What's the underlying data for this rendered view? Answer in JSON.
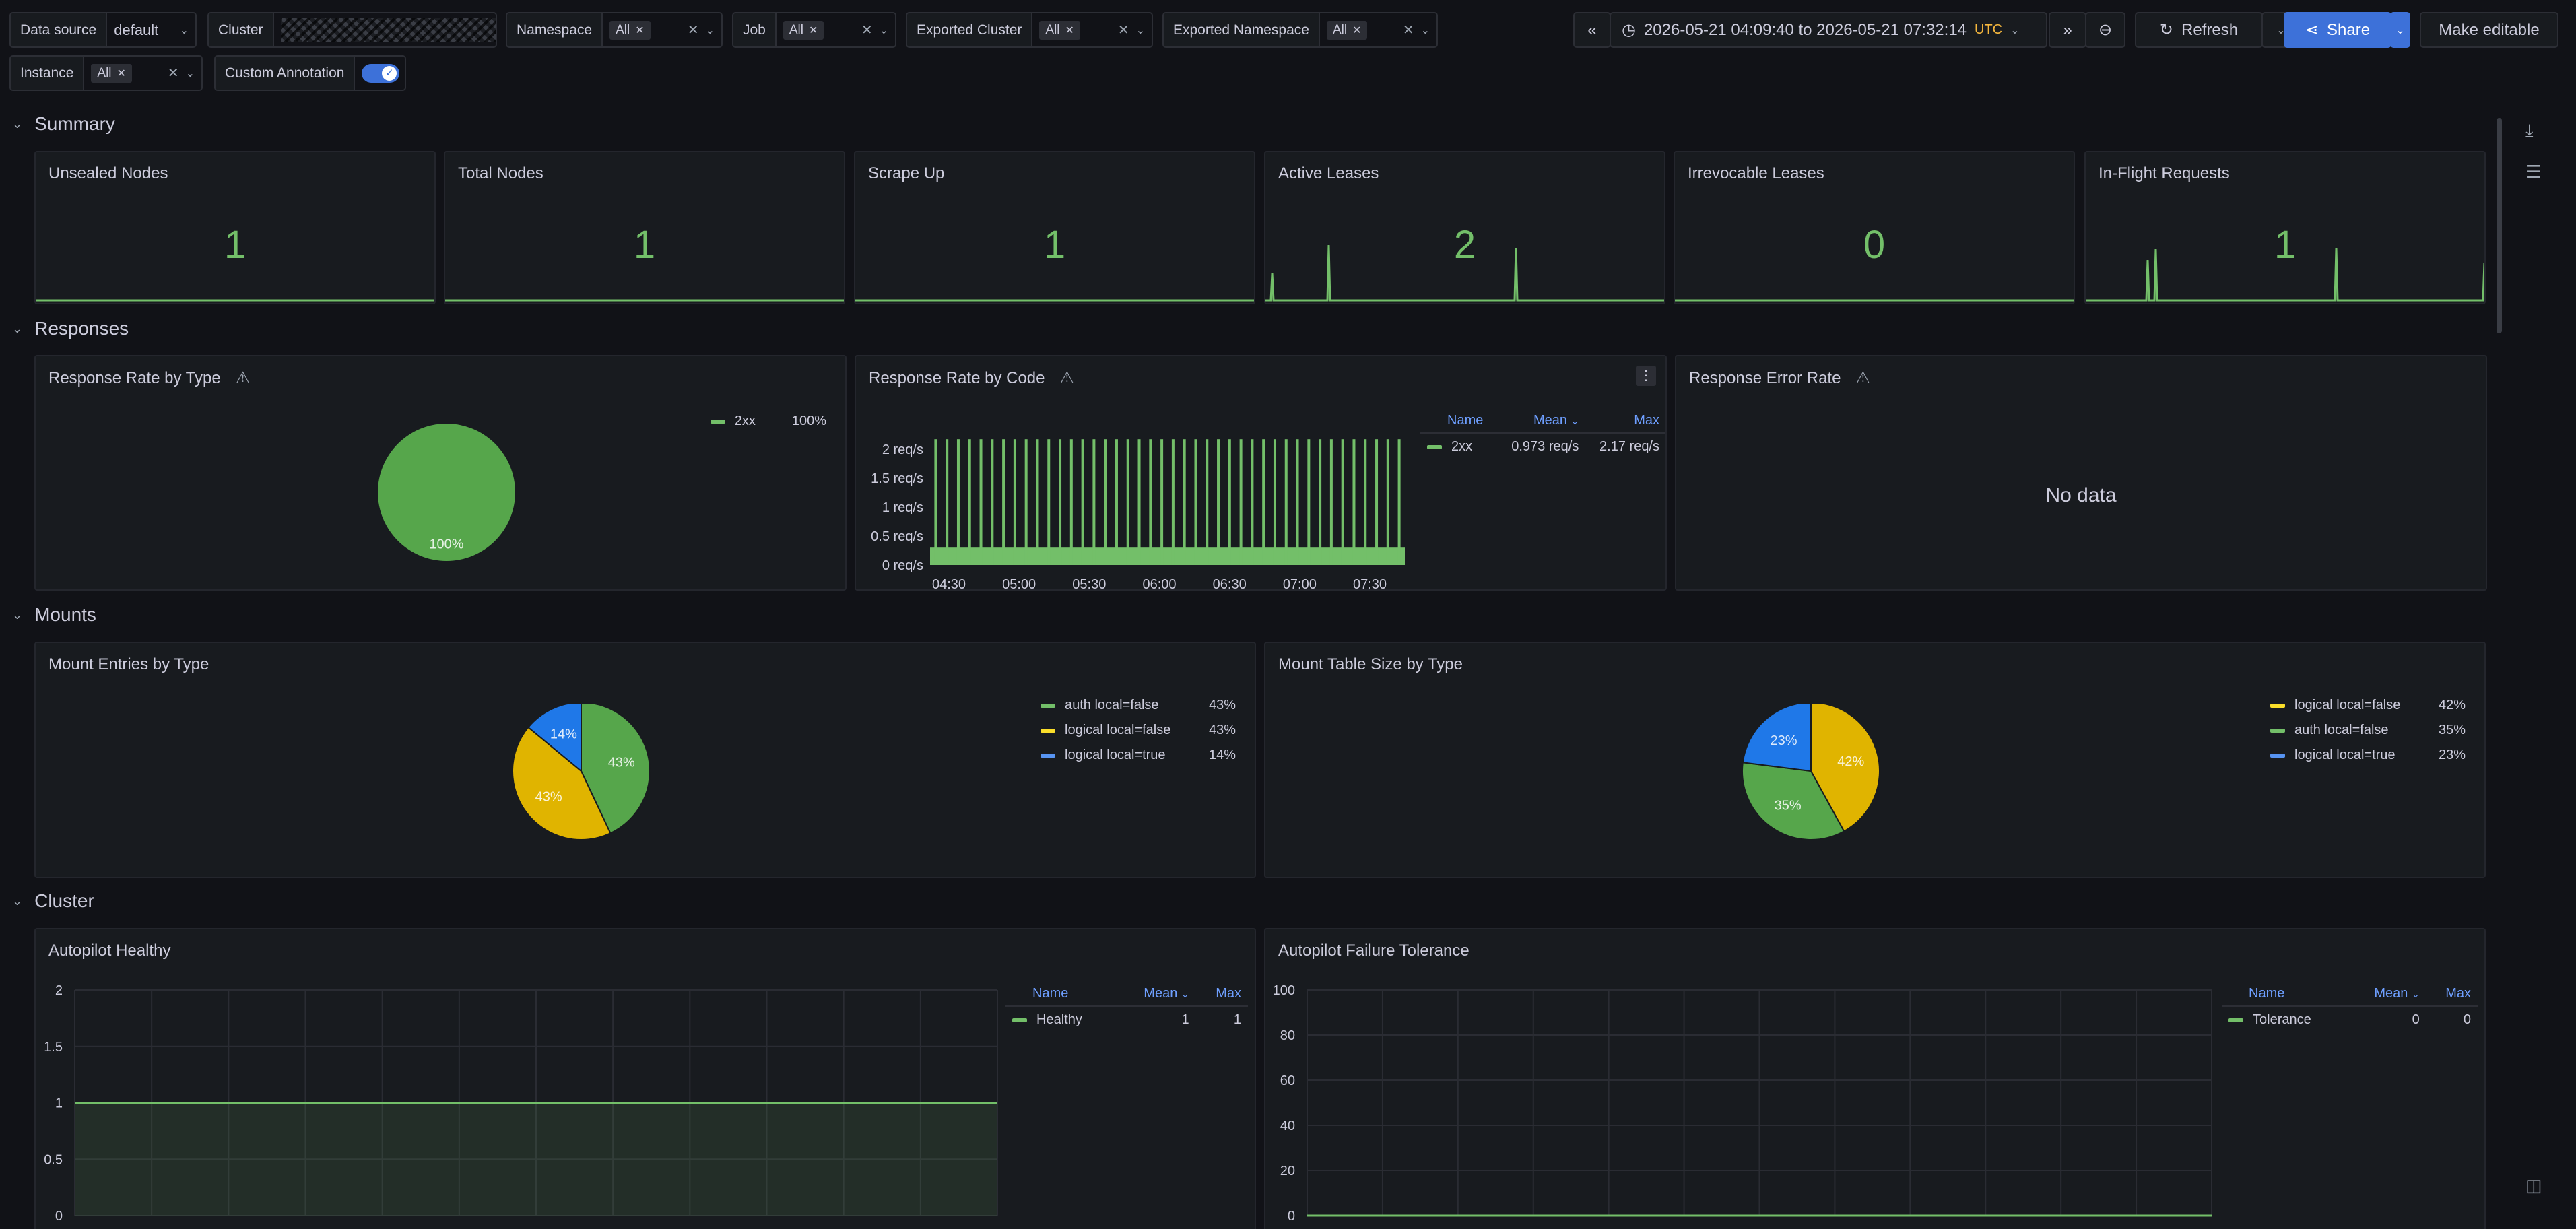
{
  "variables": {
    "datasource": {
      "label": "Data source",
      "value": "default"
    },
    "cluster": {
      "label": "Cluster"
    },
    "namespace": {
      "label": "Namespace",
      "value": "All"
    },
    "job": {
      "label": "Job",
      "value": "All"
    },
    "exported_cluster": {
      "label": "Exported Cluster",
      "value": "All"
    },
    "exported_namespace": {
      "label": "Exported Namespace",
      "value": "All"
    },
    "instance": {
      "label": "Instance",
      "value": "All"
    },
    "custom_annotation": {
      "label": "Custom Annotation",
      "enabled": true
    }
  },
  "toolbar": {
    "time_range": "2026-05-21 04:09:40 to 2026-05-21 07:32:14",
    "timezone": "UTC",
    "refresh_label": "Refresh",
    "share_label": "Share",
    "edit_label": "Make editable"
  },
  "rows": {
    "summary": "Summary",
    "responses": "Responses",
    "mounts": "Mounts",
    "cluster": "Cluster"
  },
  "stats": [
    {
      "title": "Unsealed Nodes",
      "value": "1",
      "sparkline": false
    },
    {
      "title": "Total Nodes",
      "value": "1",
      "sparkline": false
    },
    {
      "title": "Scrape Up",
      "value": "1",
      "sparkline": false
    },
    {
      "title": "Active Leases",
      "value": "2",
      "sparkline": true
    },
    {
      "title": "Irrevocable Leases",
      "value": "0",
      "sparkline": false
    },
    {
      "title": "In-Flight Requests",
      "value": "1",
      "sparkline": true
    }
  ],
  "responses": {
    "by_type": {
      "title": "Response Rate by Type",
      "legend": [
        {
          "name": "2xx",
          "pct": "100%"
        }
      ],
      "pie_label": "100%"
    },
    "by_code": {
      "title": "Response Rate by Code",
      "legend_headers": {
        "name": "Name",
        "mean": "Mean",
        "max": "Max"
      },
      "legend": [
        {
          "name": "2xx",
          "mean": "0.973 req/s",
          "max": "2.17 req/s"
        }
      ]
    },
    "error_rate": {
      "title": "Response Error Rate",
      "no_data": "No data"
    }
  },
  "mounts": {
    "entries": {
      "title": "Mount Entries by Type",
      "legend": [
        {
          "name": "auth local=false",
          "pct": "43%"
        },
        {
          "name": "logical local=false",
          "pct": "43%"
        },
        {
          "name": "logical local=true",
          "pct": "14%"
        }
      ]
    },
    "table_size": {
      "title": "Mount Table Size by Type",
      "legend": [
        {
          "name": "logical local=false",
          "pct": "42%"
        },
        {
          "name": "auth local=false",
          "pct": "35%"
        },
        {
          "name": "logical local=true",
          "pct": "23%"
        }
      ]
    }
  },
  "cluster_panels": {
    "healthy": {
      "title": "Autopilot Healthy",
      "legend_headers": {
        "name": "Name",
        "mean": "Mean",
        "max": "Max"
      },
      "legend": [
        {
          "name": "Healthy",
          "mean": "1",
          "max": "1"
        }
      ]
    },
    "tolerance": {
      "title": "Autopilot Failure Tolerance",
      "legend_headers": {
        "name": "Name",
        "mean": "Mean",
        "max": "Max"
      },
      "legend": [
        {
          "name": "Tolerance",
          "mean": "0",
          "max": "0"
        }
      ]
    }
  },
  "colors": {
    "green": "#73bf69",
    "green_dark": "#56a64b",
    "yellow": "#e0b400",
    "yellow_dark": "#c8a400",
    "blue": "#1f78e8",
    "accent": "#3d71d9",
    "utc": "#f5b73d"
  },
  "chart_data": [
    {
      "type": "pie",
      "title": "Response Rate by Type",
      "categories": [
        "2xx"
      ],
      "values": [
        100
      ],
      "colors": [
        "#56a64b"
      ],
      "slice_labels": [
        "100%"
      ]
    },
    {
      "type": "bar",
      "title": "Response Rate by Code",
      "x_ticks": [
        "04:30",
        "05:00",
        "05:30",
        "06:00",
        "06:30",
        "07:00",
        "07:30"
      ],
      "y_ticks": [
        "0 req/s",
        "0.5 req/s",
        "1 req/s",
        "1.5 req/s",
        "2 req/s"
      ],
      "ylim": [
        0,
        2.3
      ],
      "series": [
        {
          "name": "2xx",
          "spikes": 42,
          "peak": 2.17,
          "base": 0.3
        }
      ]
    },
    {
      "type": "pie",
      "title": "Mount Entries by Type",
      "categories": [
        "auth local=false",
        "logical local=false",
        "logical local=true"
      ],
      "values": [
        43,
        43,
        14
      ],
      "colors": [
        "#56a64b",
        "#e0b400",
        "#1f78e8"
      ],
      "slice_labels": [
        "43%",
        "43%",
        "14%"
      ]
    },
    {
      "type": "pie",
      "title": "Mount Table Size by Type",
      "categories": [
        "logical local=false",
        "auth local=false",
        "logical local=true"
      ],
      "values": [
        42,
        35,
        23
      ],
      "colors": [
        "#e0b400",
        "#56a64b",
        "#1f78e8"
      ],
      "slice_labels": [
        "42%",
        "35%",
        "23%"
      ]
    },
    {
      "type": "area",
      "title": "Autopilot Healthy",
      "y_ticks": [
        "0",
        "0.5",
        "1",
        "1.5",
        "2"
      ],
      "ylim": [
        0,
        2
      ],
      "series": [
        {
          "name": "Healthy",
          "value": 1
        }
      ]
    },
    {
      "type": "line",
      "title": "Autopilot Failure Tolerance",
      "y_ticks": [
        "0",
        "20",
        "40",
        "60",
        "80",
        "100"
      ],
      "ylim": [
        0,
        100
      ],
      "series": [
        {
          "name": "Tolerance",
          "value": 0
        }
      ]
    }
  ]
}
